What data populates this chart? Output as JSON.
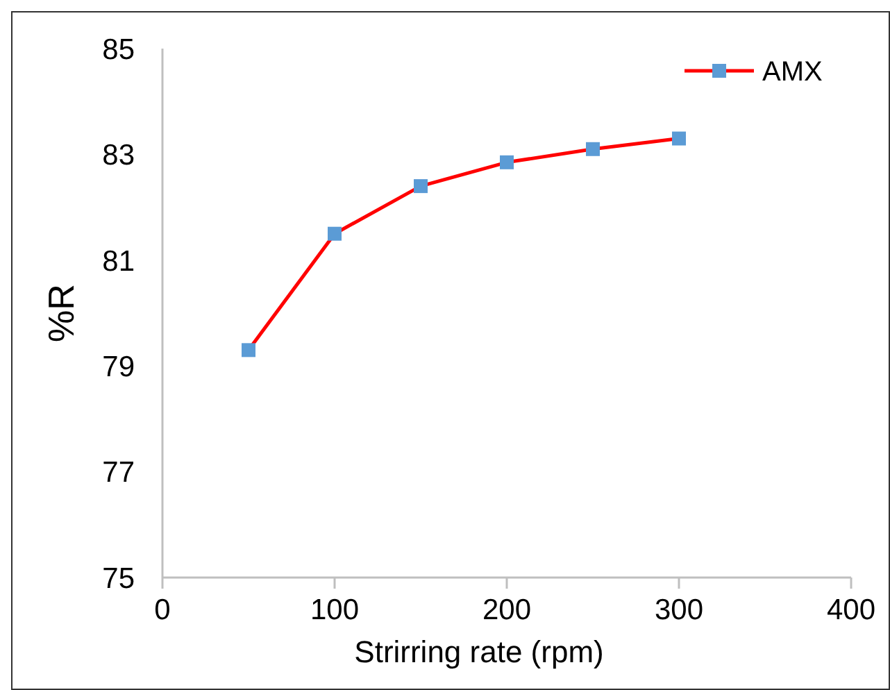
{
  "chart_data": {
    "type": "line",
    "xlabel": "Strirring rate (rpm)",
    "ylabel": "%R",
    "x": [
      50,
      100,
      150,
      200,
      250,
      300
    ],
    "series": [
      {
        "name": "AMX",
        "color": "#ff0000",
        "values": [
          79.3,
          81.5,
          82.4,
          82.85,
          83.1,
          83.3
        ]
      }
    ],
    "xlim": [
      0,
      400
    ],
    "xticks": [
      0,
      100,
      200,
      300,
      400
    ],
    "ylim": [
      75,
      85
    ],
    "yticks": [
      75,
      77,
      79,
      81,
      83,
      85
    ],
    "grid": false,
    "legend": "top right",
    "marker": "square",
    "line_style": "solid"
  }
}
